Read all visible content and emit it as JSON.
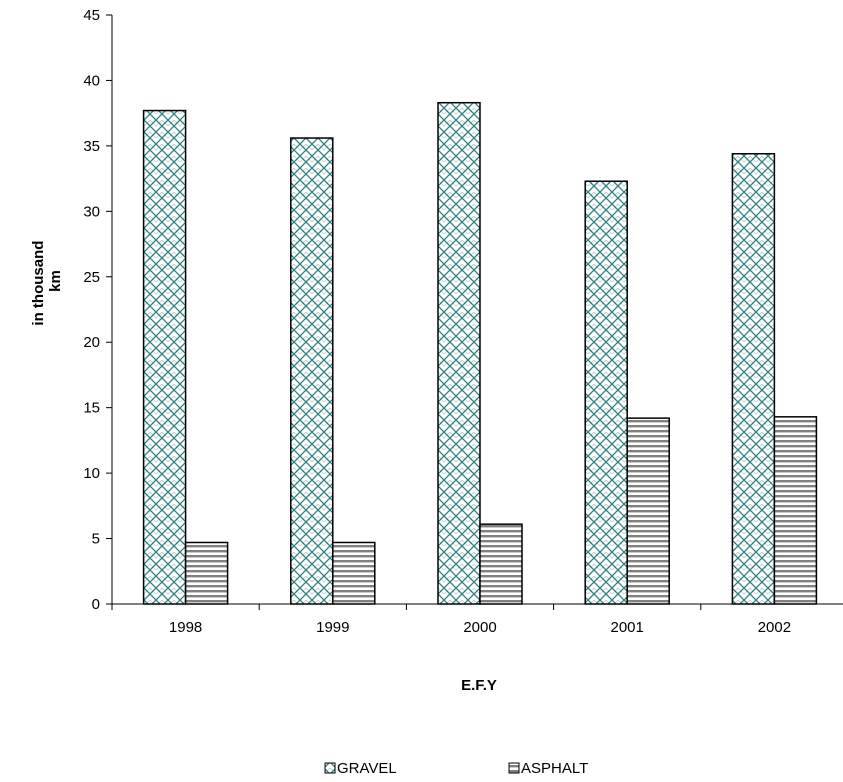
{
  "chart_data": {
    "type": "bar",
    "title": "",
    "xlabel": "E.F.Y",
    "ylabel_lines": [
      "in thousand",
      "km"
    ],
    "categories": [
      "1998",
      "1999",
      "2000",
      "2001",
      "2002"
    ],
    "ylim": [
      0,
      45
    ],
    "yticks": [
      "0",
      "5",
      "10",
      "15",
      "20",
      "25",
      "30",
      "35",
      "40",
      "45"
    ],
    "grid": false,
    "legend_position": "bottom",
    "series": [
      {
        "name": "GRAVEL",
        "values": [
          37.7,
          35.6,
          38.3,
          32.3,
          34.4
        ],
        "pattern": "cross-hatch",
        "color": "#2e7f7f"
      },
      {
        "name": "ASPHALT",
        "values": [
          4.7,
          4.7,
          6.1,
          14.2,
          14.3
        ],
        "pattern": "horizontal-stripes",
        "color": "#808080"
      }
    ]
  }
}
